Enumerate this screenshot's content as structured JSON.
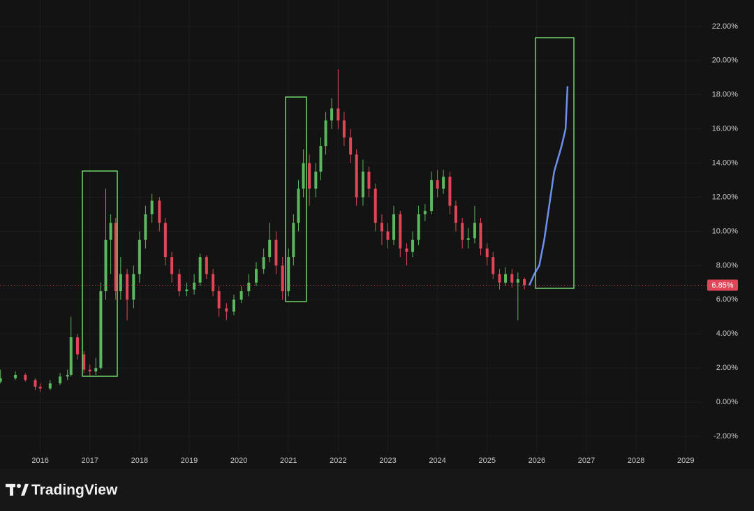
{
  "chart_data": {
    "type": "candlestick",
    "x": [
      2015.2,
      2015.5,
      2015.7,
      2015.9,
      2016.0,
      2016.2,
      2016.4,
      2016.55,
      2016.62,
      2016.75,
      2016.88,
      2017.0,
      2017.12,
      2017.22,
      2017.32,
      2017.42,
      2017.52,
      2017.62,
      2017.75,
      2017.88,
      2018.0,
      2018.12,
      2018.25,
      2018.4,
      2018.52,
      2018.65,
      2018.8,
      2018.95,
      2019.1,
      2019.22,
      2019.35,
      2019.48,
      2019.6,
      2019.75,
      2019.9,
      2020.05,
      2020.2,
      2020.35,
      2020.5,
      2020.62,
      2020.75,
      2020.88,
      2021.0,
      2021.1,
      2021.2,
      2021.3,
      2021.42,
      2021.55,
      2021.65,
      2021.75,
      2021.87,
      2022.0,
      2022.12,
      2022.25,
      2022.37,
      2022.5,
      2022.62,
      2022.75,
      2022.88,
      2023.0,
      2023.12,
      2023.25,
      2023.38,
      2023.5,
      2023.62,
      2023.75,
      2023.88,
      2024.0,
      2024.12,
      2024.25,
      2024.37,
      2024.5,
      2024.62,
      2024.75,
      2024.87,
      2025.0,
      2025.12,
      2025.25,
      2025.37,
      2025.5,
      2025.62,
      2025.75
    ],
    "open": [
      1.2,
      1.4,
      1.6,
      1.3,
      0.9,
      0.8,
      1.1,
      1.5,
      1.6,
      3.8,
      2.8,
      1.9,
      1.8,
      2.0,
      6.5,
      9.5,
      10.5,
      6.5,
      7.5,
      6.0,
      7.5,
      9.5,
      11.0,
      11.8,
      10.5,
      8.5,
      7.5,
      6.5,
      6.6,
      7.0,
      8.5,
      7.5,
      6.5,
      5.5,
      5.3,
      6.0,
      6.5,
      7.0,
      7.8,
      8.5,
      9.5,
      8.0,
      6.5,
      8.5,
      10.5,
      12.5,
      14.0,
      12.5,
      13.5,
      15.0,
      16.5,
      17.2,
      16.5,
      15.5,
      14.5,
      12.0,
      13.5,
      12.5,
      10.5,
      10.0,
      9.5,
      11.0,
      9.0,
      8.8,
      9.5,
      11.0,
      11.2,
      13.0,
      12.5,
      13.2,
      11.5,
      10.5,
      9.5,
      9.6,
      10.5,
      9.0,
      8.5,
      7.5,
      7.0,
      7.5,
      7.0,
      7.2
    ],
    "high": [
      1.9,
      1.8,
      1.7,
      1.4,
      1.1,
      1.3,
      1.7,
      1.9,
      5.0,
      4.0,
      3.0,
      2.2,
      2.6,
      7.0,
      12.5,
      11.0,
      10.8,
      8.5,
      7.8,
      8.0,
      10.0,
      11.5,
      12.2,
      12.0,
      10.8,
      8.8,
      7.8,
      7.0,
      7.5,
      8.7,
      8.6,
      7.8,
      6.8,
      5.8,
      6.3,
      6.8,
      7.5,
      8.2,
      9.0,
      10.5,
      10.0,
      8.5,
      9.0,
      11.0,
      13.0,
      14.8,
      14.5,
      14.0,
      15.5,
      17.0,
      17.8,
      19.5,
      17.0,
      16.0,
      14.8,
      14.2,
      13.8,
      12.8,
      11.0,
      10.5,
      11.5,
      11.2,
      9.3,
      10.0,
      11.5,
      11.6,
      13.5,
      13.6,
      13.6,
      13.5,
      11.8,
      10.8,
      10.2,
      11.5,
      10.8,
      9.3,
      8.8,
      7.8,
      7.9,
      7.8,
      7.6,
      7.3
    ],
    "low": [
      1.1,
      1.3,
      1.2,
      0.7,
      0.6,
      0.7,
      1.0,
      1.3,
      1.5,
      2.5,
      1.7,
      1.5,
      1.6,
      1.9,
      6.0,
      7.5,
      6.0,
      6.0,
      4.8,
      5.5,
      7.0,
      9.0,
      10.5,
      10.0,
      8.0,
      7.0,
      6.2,
      6.2,
      6.3,
      6.8,
      7.2,
      6.2,
      5.0,
      4.8,
      5.1,
      5.8,
      6.2,
      6.8,
      7.5,
      8.2,
      7.5,
      6.0,
      6.2,
      8.0,
      10.0,
      12.0,
      11.5,
      12.0,
      13.0,
      14.5,
      16.0,
      16.0,
      15.0,
      14.0,
      11.5,
      11.5,
      12.0,
      10.0,
      9.2,
      9.0,
      9.2,
      8.5,
      8.0,
      8.5,
      9.2,
      10.6,
      11.0,
      12.0,
      12.2,
      11.0,
      10.0,
      9.0,
      9.0,
      9.3,
      8.6,
      8.0,
      7.2,
      6.6,
      6.8,
      6.7,
      4.8,
      6.6
    ],
    "close": [
      1.4,
      1.6,
      1.3,
      0.9,
      0.8,
      1.1,
      1.5,
      1.6,
      3.8,
      2.8,
      1.9,
      1.8,
      2.0,
      6.5,
      9.5,
      10.5,
      6.5,
      7.5,
      6.0,
      7.5,
      9.5,
      11.0,
      11.8,
      10.5,
      8.5,
      7.5,
      6.5,
      6.6,
      7.0,
      8.5,
      7.5,
      6.5,
      5.5,
      5.3,
      6.0,
      6.5,
      7.0,
      7.8,
      8.5,
      9.5,
      8.0,
      6.5,
      8.5,
      10.5,
      12.5,
      14.0,
      12.5,
      13.5,
      15.0,
      16.5,
      17.2,
      16.5,
      15.5,
      14.5,
      12.0,
      13.5,
      12.5,
      10.5,
      10.0,
      9.5,
      11.0,
      9.0,
      8.8,
      9.5,
      11.0,
      11.2,
      13.0,
      12.5,
      13.2,
      11.5,
      10.5,
      9.5,
      9.6,
      10.5,
      9.0,
      8.5,
      7.5,
      7.0,
      7.5,
      7.0,
      7.2,
      6.85
    ],
    "up_color": "#5cb85f",
    "down_color": "#e04658",
    "projection": {
      "color": "#6f8ff0",
      "x": [
        2025.85,
        2025.95,
        2026.05,
        2026.15,
        2026.25,
        2026.35,
        2026.42,
        2026.5,
        2026.58,
        2026.62
      ],
      "values": [
        6.85,
        7.5,
        8.0,
        9.5,
        11.5,
        13.5,
        14.2,
        15.0,
        16.0,
        18.5
      ]
    },
    "last_price": {
      "value": 6.85,
      "label": "6.85%"
    },
    "xlim": [
      2015.19,
      2029.32
    ],
    "xticks": [
      2016,
      2017,
      2018,
      2019,
      2020,
      2021,
      2022,
      2023,
      2024,
      2025,
      2026,
      2027,
      2028,
      2029
    ],
    "ylim": [
      -2.94,
      23.55
    ],
    "yticks": [
      {
        "value": -2,
        "label": "-2.00%"
      },
      {
        "value": 0,
        "label": "0.00%"
      },
      {
        "value": 2,
        "label": "2.00%"
      },
      {
        "value": 4,
        "label": "4.00%"
      },
      {
        "value": 6,
        "label": "6.00%"
      },
      {
        "value": 8,
        "label": "8.00%"
      },
      {
        "value": 10,
        "label": "10.00%"
      },
      {
        "value": 12,
        "label": "12.00%"
      },
      {
        "value": 14,
        "label": "14.00%"
      },
      {
        "value": 16,
        "label": "16.00%"
      },
      {
        "value": 18,
        "label": "18.00%"
      },
      {
        "value": 20,
        "label": "20.00%"
      },
      {
        "value": 22,
        "label": "22.00%"
      }
    ],
    "grid": true
  },
  "footer": {
    "brand": "TradingView"
  }
}
